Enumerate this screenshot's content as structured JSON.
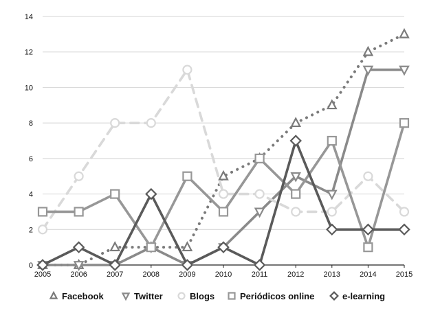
{
  "chart_data": {
    "type": "line",
    "title": "",
    "xlabel": "",
    "ylabel": "",
    "x": [
      "2005",
      "2006",
      "2007",
      "2008",
      "2009",
      "2010",
      "2011",
      "2012",
      "2013",
      "2014",
      "2015"
    ],
    "ylim": [
      0,
      14
    ],
    "yticks": [
      0,
      2,
      4,
      6,
      8,
      10,
      12,
      14
    ],
    "grid": "horizontal",
    "legend": "bottom",
    "series": [
      {
        "name": "Facebook",
        "values": [
          0,
          0,
          1,
          1,
          1,
          5,
          6,
          8,
          9,
          12,
          13
        ],
        "color": "#7a7a7a",
        "line": "dotted",
        "marker": "triangle-up"
      },
      {
        "name": "Twitter",
        "values": [
          0,
          0,
          0,
          1,
          0,
          1,
          3,
          5,
          4,
          11,
          11
        ],
        "color": "#8a8a8a",
        "line": "solid",
        "marker": "triangle-down"
      },
      {
        "name": "Blogs",
        "values": [
          2,
          5,
          8,
          8,
          11,
          4,
          4,
          3,
          3,
          5,
          3
        ],
        "color": "#d9d9d9",
        "line": "dashed",
        "marker": "circle"
      },
      {
        "name": "Periódicos online",
        "values": [
          3,
          3,
          4,
          1,
          5,
          3,
          6,
          4,
          7,
          1,
          8
        ],
        "color": "#979797",
        "line": "solid",
        "marker": "square"
      },
      {
        "name": "e-learning",
        "values": [
          0,
          1,
          0,
          4,
          0,
          1,
          0,
          7,
          2,
          2,
          2
        ],
        "color": "#5a5a5a",
        "line": "solid",
        "marker": "diamond"
      }
    ]
  }
}
